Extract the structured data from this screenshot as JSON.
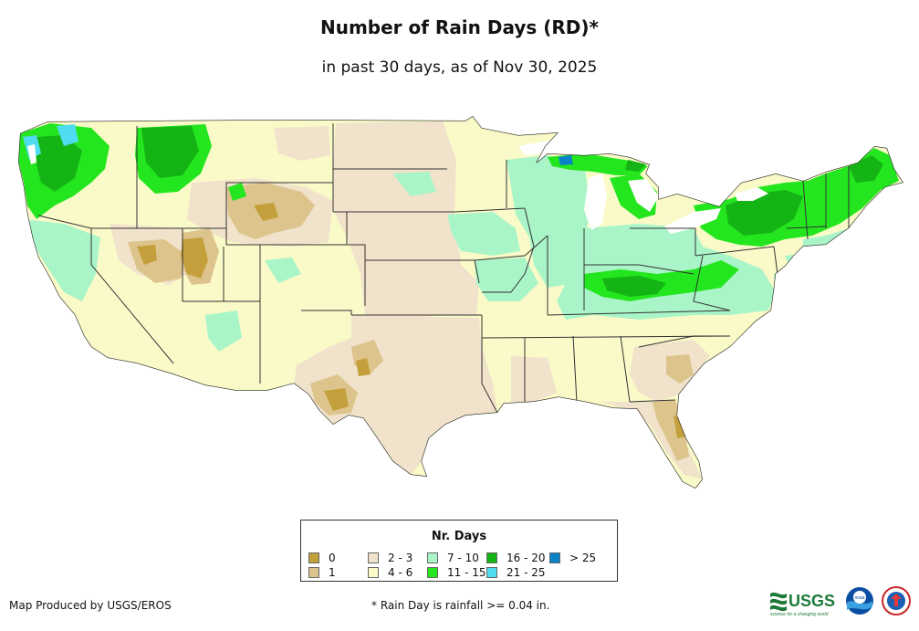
{
  "header": {
    "title": "Number of Rain Days (RD)*",
    "subtitle": "in past 30 days, as of Nov 30, 2025"
  },
  "legend": {
    "title": "Nr. Days",
    "items": [
      {
        "label": "0",
        "color": "#c4a03c"
      },
      {
        "label": "1",
        "color": "#dcc48c"
      },
      {
        "label": "2 - 3",
        "color": "#f0e2cb"
      },
      {
        "label": "4 - 6",
        "color": "#fafac8"
      },
      {
        "label": "7 - 10",
        "color": "#aaf5c8"
      },
      {
        "label": "11 - 15",
        "color": "#23e61e"
      },
      {
        "label": "16 - 20",
        "color": "#14b414"
      },
      {
        "label": "21 - 25",
        "color": "#50dcf0"
      },
      {
        "label": "> 25",
        "color": "#0a82c8"
      }
    ]
  },
  "footer": {
    "credit": "Map Produced by USGS/EROS",
    "footnote": "* Rain Day is rainfall >= 0.04 in.",
    "logo_text": "USGS",
    "logo_tagline": "science for a changing world",
    "noaa_text": "noaa"
  }
}
